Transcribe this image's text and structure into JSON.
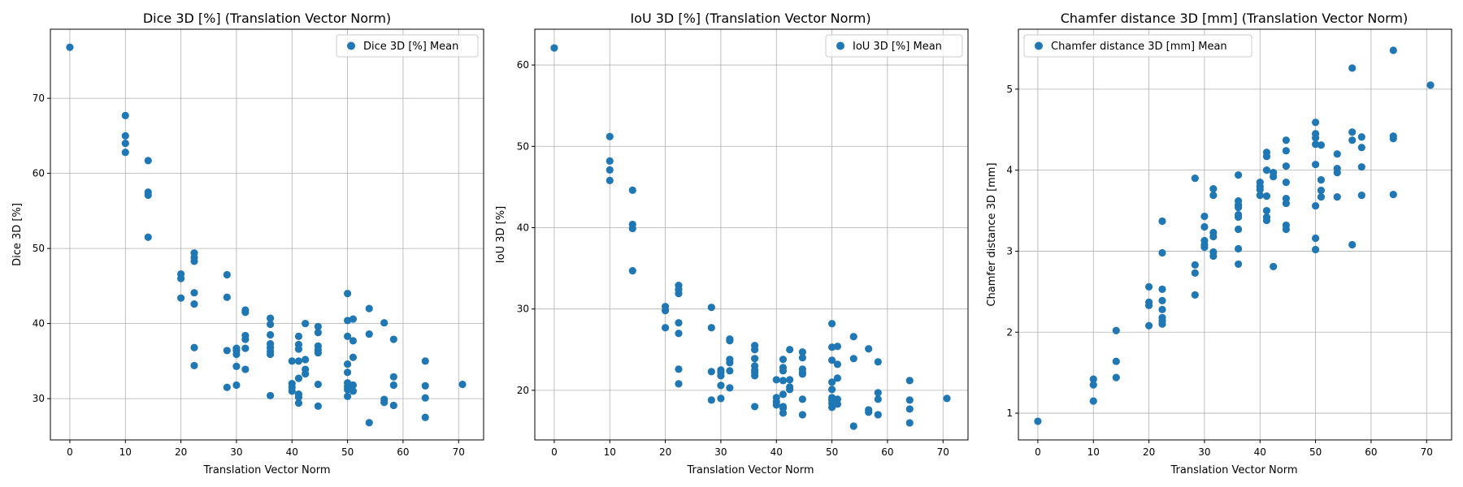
{
  "colors": {
    "marker": "#1f77b4",
    "grid": "#b0b0b0",
    "axes": "#000000",
    "legend_border": "#cccccc"
  },
  "chart_data": [
    {
      "type": "scatter",
      "title": "Dice 3D [%] (Translation Vector Norm)",
      "xlabel": "Translation Vector Norm",
      "ylabel": "Dice 3D [%]",
      "xlim": [
        -3.5,
        74.5
      ],
      "ylim": [
        24.5,
        79.2
      ],
      "xticks": [
        0,
        10,
        20,
        30,
        40,
        50,
        60,
        70
      ],
      "yticks": [
        30,
        40,
        50,
        60,
        70
      ],
      "grid": true,
      "legend": {
        "position": "upper right",
        "entries": [
          "Dice 3D [%] Mean"
        ]
      },
      "series": [
        {
          "name": "Dice 3D [%] Mean",
          "x": [
            0,
            10,
            10,
            10,
            10,
            14.1,
            14.1,
            14.1,
            14.1,
            20,
            20,
            20,
            22.4,
            22.4,
            22.4,
            22.4,
            22.4,
            22.4,
            22.4,
            28.3,
            28.3,
            28.3,
            28.3,
            30,
            30,
            30,
            30,
            30,
            31.6,
            31.6,
            31.6,
            31.6,
            31.6,
            31.6,
            36.1,
            36.1,
            36.1,
            36.1,
            36.1,
            36.1,
            36.1,
            36.1,
            40,
            40,
            40,
            40,
            41.2,
            41.2,
            41.2,
            41.2,
            41.2,
            41.2,
            41.2,
            41.2,
            42.4,
            42.4,
            42.4,
            42.4,
            44.7,
            44.7,
            44.7,
            44.7,
            44.7,
            44.7,
            44.7,
            50,
            50,
            50,
            50,
            50,
            50,
            50,
            50,
            50,
            51,
            51,
            51,
            51,
            51,
            53.9,
            53.9,
            53.9,
            56.6,
            56.6,
            56.6,
            58.3,
            58.3,
            58.3,
            58.3,
            64,
            64,
            64,
            64,
            70.7
          ],
          "y": [
            76.8,
            67.7,
            65,
            64,
            62.8,
            61.7,
            57.5,
            57.1,
            51.5,
            46.6,
            46,
            43.4,
            49.4,
            48.8,
            48.3,
            44.1,
            42.6,
            36.8,
            34.4,
            46.5,
            43.5,
            36.4,
            31.5,
            36.7,
            36.4,
            35.9,
            34.3,
            31.8,
            41.8,
            41.5,
            38.4,
            37.9,
            36.7,
            33.9,
            40.7,
            39.9,
            38.5,
            37.3,
            36.8,
            36.3,
            35.9,
            30.4,
            35,
            32,
            31.5,
            31,
            38.3,
            37.2,
            36.6,
            35,
            32.7,
            30.6,
            30.2,
            29.4,
            40,
            35.2,
            33.9,
            33.3,
            39.6,
            38.8,
            37,
            36.5,
            36.1,
            31.9,
            29,
            44,
            40.4,
            38.3,
            34.6,
            33.5,
            32.1,
            31.6,
            31.2,
            30.3,
            40.6,
            37.7,
            35.5,
            31.8,
            31,
            42,
            38.6,
            26.8,
            40.1,
            29.9,
            29.5,
            37.9,
            32.9,
            31.8,
            29.1,
            35,
            31.7,
            30.1,
            27.5,
            31.9
          ]
        }
      ]
    },
    {
      "type": "scatter",
      "title": "IoU 3D [%] (Translation Vector Norm)",
      "xlabel": "Translation Vector Norm",
      "ylabel": "IoU 3D [%]",
      "xlim": [
        -3.5,
        74.5
      ],
      "ylim": [
        13.9,
        64.4
      ],
      "xticks": [
        0,
        10,
        20,
        30,
        40,
        50,
        60,
        70
      ],
      "yticks": [
        20,
        30,
        40,
        50,
        60
      ],
      "grid": true,
      "legend": {
        "position": "upper right",
        "entries": [
          "IoU 3D [%] Mean"
        ]
      },
      "series": [
        {
          "name": "IoU 3D [%] Mean",
          "x": [
            0,
            10,
            10,
            10,
            10,
            14.1,
            14.1,
            14.1,
            14.1,
            20,
            20,
            20,
            22.4,
            22.4,
            22.4,
            22.4,
            22.4,
            22.4,
            22.4,
            28.3,
            28.3,
            28.3,
            28.3,
            30,
            30,
            30,
            30,
            30,
            31.6,
            31.6,
            31.6,
            31.6,
            31.6,
            31.6,
            36.1,
            36.1,
            36.1,
            36.1,
            36.1,
            36.1,
            36.1,
            36.1,
            40,
            40,
            40,
            40,
            41.2,
            41.2,
            41.2,
            41.2,
            41.2,
            41.2,
            41.2,
            41.2,
            42.4,
            42.4,
            42.4,
            42.4,
            44.7,
            44.7,
            44.7,
            44.7,
            44.7,
            44.7,
            44.7,
            50,
            50,
            50,
            50,
            50,
            50,
            50,
            50,
            50,
            51,
            51,
            51,
            51,
            51,
            53.9,
            53.9,
            53.9,
            56.6,
            56.6,
            56.6,
            58.3,
            58.3,
            58.3,
            58.3,
            64,
            64,
            64,
            64,
            70.7
          ],
          "y": [
            62.1,
            51.2,
            48.2,
            47.1,
            45.8,
            44.6,
            40.4,
            39.9,
            34.7,
            30.3,
            29.8,
            27.7,
            32.9,
            32.4,
            31.9,
            28.3,
            27,
            22.6,
            20.8,
            30.2,
            27.7,
            22.3,
            18.8,
            22.5,
            22.2,
            21.8,
            20.6,
            19,
            26.3,
            26.1,
            23.8,
            23.4,
            22.4,
            20.3,
            25.5,
            25,
            23.9,
            23,
            22.5,
            22.2,
            21.8,
            18,
            21.3,
            19.1,
            18.6,
            18.2,
            23.8,
            22.8,
            22.4,
            21.2,
            19.5,
            18,
            17.8,
            17.2,
            25,
            21.3,
            20.4,
            20.1,
            24.7,
            24,
            22.6,
            22.2,
            22,
            18.9,
            17,
            28.2,
            25.3,
            23.7,
            21,
            20.1,
            19.1,
            18.8,
            18.4,
            17.9,
            25.4,
            23.2,
            21.5,
            18.9,
            18.3,
            26.6,
            23.9,
            15.6,
            25.1,
            17.6,
            17.3,
            23.5,
            19.7,
            18.9,
            17,
            21.2,
            18.8,
            17.7,
            16,
            19
          ]
        }
      ]
    },
    {
      "type": "scatter",
      "title": "Chamfer distance 3D [mm] (Translation Vector Norm)",
      "xlabel": "Translation Vector Norm",
      "ylabel": "Chamfer distance 3D [mm]",
      "xlim": [
        -3.5,
        74.5
      ],
      "ylim": [
        0.67,
        5.74
      ],
      "xticks": [
        0,
        10,
        20,
        30,
        40,
        50,
        60,
        70
      ],
      "yticks": [
        1,
        2,
        3,
        4,
        5
      ],
      "grid": true,
      "legend": {
        "position": "upper left",
        "entries": [
          "Chamfer distance 3D [mm] Mean"
        ]
      },
      "series": [
        {
          "name": "Chamfer distance 3D [mm] Mean",
          "x": [
            0,
            10,
            10,
            10,
            14.1,
            14.1,
            14.1,
            20,
            20,
            20,
            20,
            22.4,
            22.4,
            22.4,
            22.4,
            22.4,
            22.4,
            22.4,
            22.4,
            28.3,
            28.3,
            28.3,
            28.3,
            30,
            30,
            30,
            30,
            30,
            31.6,
            31.6,
            31.6,
            31.6,
            31.6,
            31.6,
            36.1,
            36.1,
            36.1,
            36.1,
            36.1,
            36.1,
            36.1,
            36.1,
            36.1,
            40,
            40,
            40,
            40,
            41.2,
            41.2,
            41.2,
            41.2,
            41.2,
            41.2,
            41.2,
            42.4,
            42.4,
            42.4,
            44.7,
            44.7,
            44.7,
            44.7,
            44.7,
            44.7,
            44.7,
            44.7,
            50,
            50,
            50,
            50,
            50,
            50,
            50,
            50,
            51,
            51,
            51,
            51,
            53.9,
            53.9,
            53.9,
            53.9,
            56.6,
            56.6,
            56.6,
            56.6,
            58.3,
            58.3,
            58.3,
            58.3,
            64,
            64,
            64,
            64,
            70.7
          ],
          "y": [
            0.9,
            1.42,
            1.35,
            1.15,
            2.02,
            1.64,
            1.44,
            2.56,
            2.37,
            2.33,
            2.08,
            3.37,
            2.98,
            2.53,
            2.39,
            2.28,
            2.18,
            2.14,
            2.1,
            3.9,
            2.83,
            2.73,
            2.46,
            3.43,
            3.3,
            3.13,
            3.08,
            3.05,
            3.77,
            3.69,
            3.23,
            3.18,
            2.99,
            2.94,
            3.94,
            3.62,
            3.57,
            3.54,
            3.45,
            3.42,
            3.27,
            3.03,
            2.84,
            3.85,
            3.8,
            3.76,
            3.69,
            4.22,
            4.17,
            4,
            3.68,
            3.5,
            3.42,
            3.38,
            3.97,
            3.92,
            2.81,
            4.37,
            4.24,
            4.05,
            3.85,
            3.65,
            3.59,
            3.32,
            3.27,
            4.59,
            4.45,
            4.4,
            4.32,
            4.07,
            3.56,
            3.16,
            3.02,
            4.31,
            3.88,
            3.75,
            3.67,
            4.2,
            4.02,
            3.97,
            3.67,
            5.26,
            4.47,
            4.37,
            3.08,
            4.41,
            4.28,
            4.04,
            3.69,
            5.48,
            4.42,
            4.39,
            3.7,
            5.05
          ]
        }
      ]
    }
  ]
}
